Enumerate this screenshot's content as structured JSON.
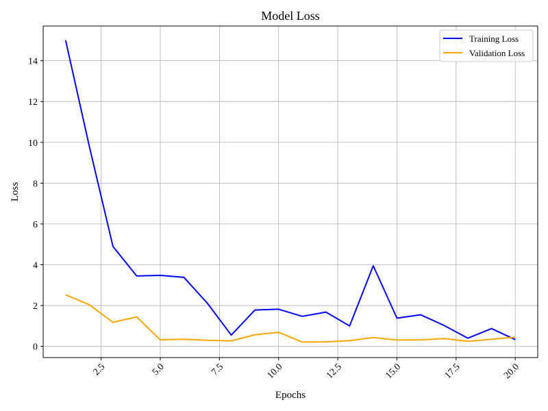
{
  "chart_data": {
    "type": "line",
    "title": "Model Loss",
    "xlabel": "Epochs",
    "ylabel": "Loss",
    "x": [
      1,
      2,
      3,
      4,
      5,
      6,
      7,
      8,
      9,
      10,
      11,
      12,
      13,
      14,
      15,
      16,
      17,
      18,
      19,
      20
    ],
    "series": [
      {
        "name": "Training Loss",
        "color": "#0000ff",
        "values": [
          15.0,
          9.8,
          4.9,
          3.45,
          3.48,
          3.38,
          2.1,
          0.55,
          1.78,
          1.82,
          1.47,
          1.68,
          1.0,
          3.95,
          1.38,
          1.55,
          1.02,
          0.4,
          0.87,
          0.33
        ]
      },
      {
        "name": "Validation Loss",
        "color": "#ffa500",
        "values": [
          2.53,
          2.04,
          1.18,
          1.44,
          0.32,
          0.35,
          0.3,
          0.27,
          0.57,
          0.69,
          0.21,
          0.22,
          0.28,
          0.43,
          0.31,
          0.32,
          0.38,
          0.25,
          0.35,
          0.45
        ]
      }
    ],
    "xlim": [
      0.05,
      20.95
    ],
    "ylim": [
      -0.55,
      15.7
    ],
    "xticks": [
      2.5,
      5.0,
      7.5,
      10.0,
      12.5,
      15.0,
      17.5,
      20.0
    ],
    "xtick_labels": [
      "2.5",
      "5.0",
      "7.5",
      "10.0",
      "12.5",
      "15.0",
      "17.5",
      "20.0"
    ],
    "yticks": [
      0,
      2,
      4,
      6,
      8,
      10,
      12,
      14
    ],
    "ytick_labels": [
      "0",
      "2",
      "4",
      "6",
      "8",
      "10",
      "12",
      "14"
    ],
    "grid": true,
    "legend_position": "top-right"
  }
}
